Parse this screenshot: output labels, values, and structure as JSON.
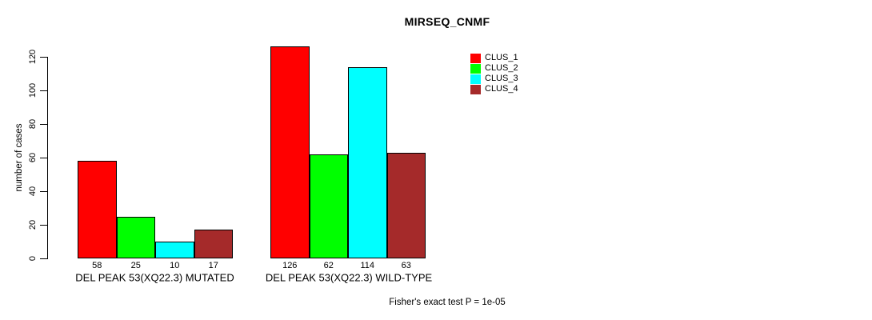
{
  "chart_data": {
    "type": "bar",
    "title": "MIRSEQ_CNMF",
    "xlabel": "",
    "ylabel": "number of cases",
    "ylim": [
      0,
      126
    ],
    "yticks": [
      0,
      20,
      40,
      60,
      80,
      100,
      120
    ],
    "grid": false,
    "legend_position": "top-right",
    "categories": [
      "DEL PEAK 53(XQ22.3) MUTATED",
      "DEL PEAK 53(XQ22.3) WILD-TYPE"
    ],
    "series": [
      {
        "name": "CLUS_1",
        "color": "#FF0000",
        "values": [
          58,
          126
        ]
      },
      {
        "name": "CLUS_2",
        "color": "#00FF00",
        "values": [
          25,
          62
        ]
      },
      {
        "name": "CLUS_3",
        "color": "#00FFFF",
        "values": [
          10,
          114
        ]
      },
      {
        "name": "CLUS_4",
        "color": "#A52A2A",
        "values": [
          17,
          63
        ]
      }
    ],
    "bar_value_labels": true,
    "annotation": "Fisher's exact test P = 1e-05"
  },
  "colors": {
    "axis": "#000000",
    "text": "#000000",
    "background": "#FFFFFF"
  }
}
